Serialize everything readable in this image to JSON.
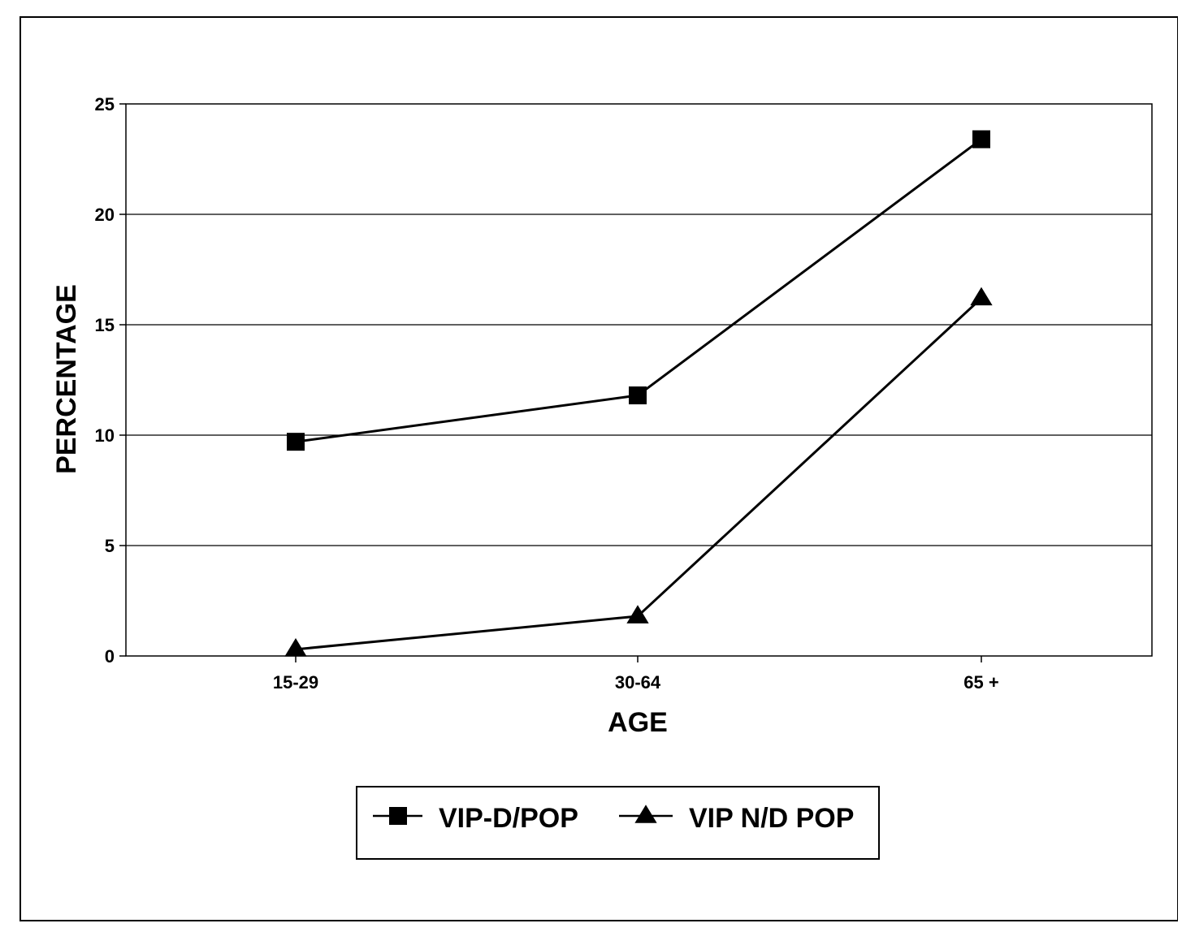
{
  "chart_data": {
    "type": "line",
    "categories": [
      "15-29",
      "30-64",
      "65 +"
    ],
    "series": [
      {
        "name": "VIP-D/POP",
        "values": [
          9.7,
          11.8,
          23.4
        ],
        "marker": "square",
        "color": "#000000"
      },
      {
        "name": "VIP N/D POP",
        "values": [
          0.3,
          1.8,
          16.2
        ],
        "marker": "triangle",
        "color": "#000000"
      }
    ],
    "xlabel": "AGE",
    "ylabel": "PERCENTAGE",
    "ylim": [
      0,
      25
    ],
    "yticks": [
      "0",
      "5",
      "10",
      "15",
      "20",
      "25"
    ],
    "grid": "horizontal",
    "legend": "bottom"
  }
}
